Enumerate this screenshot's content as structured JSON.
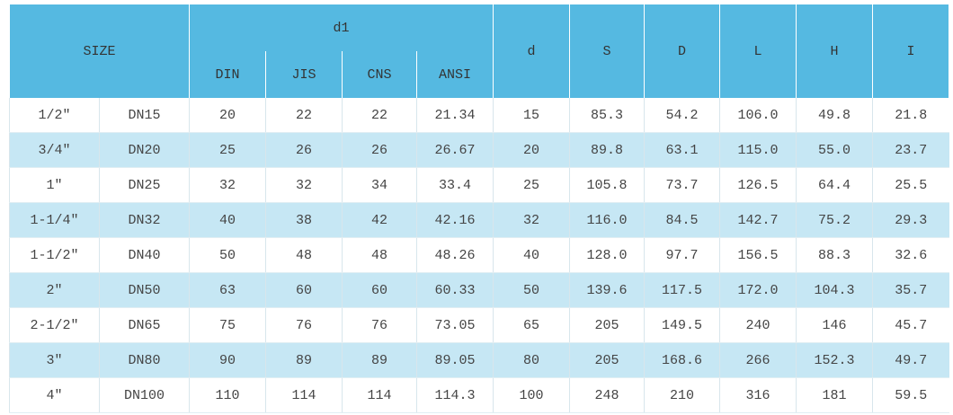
{
  "header": {
    "size": "SIZE",
    "d1": "d1",
    "d1_sub": [
      "DIN",
      "JIS",
      "CNS",
      "ANSI"
    ],
    "columns": [
      "d",
      "S",
      "D",
      "L",
      "H",
      "I"
    ]
  },
  "table": {
    "rows": [
      [
        "1/2″",
        "DN15",
        "20",
        "22",
        "22",
        "21.34",
        "15",
        "85.3",
        "54.2",
        "106.0",
        "49.8",
        "21.8"
      ],
      [
        "3/4″",
        "DN20",
        "25",
        "26",
        "26",
        "26.67",
        "20",
        "89.8",
        "63.1",
        "115.0",
        "55.0",
        "23.7"
      ],
      [
        "1″",
        "DN25",
        "32",
        "32",
        "34",
        "33.4",
        "25",
        "105.8",
        "73.7",
        "126.5",
        "64.4",
        "25.5"
      ],
      [
        "1-1/4″",
        "DN32",
        "40",
        "38",
        "42",
        "42.16",
        "32",
        "116.0",
        "84.5",
        "142.7",
        "75.2",
        "29.3"
      ],
      [
        "1-1/2″",
        "DN40",
        "50",
        "48",
        "48",
        "48.26",
        "40",
        "128.0",
        "97.7",
        "156.5",
        "88.3",
        "32.6"
      ],
      [
        "2″",
        "DN50",
        "63",
        "60",
        "60",
        "60.33",
        "50",
        "139.6",
        "117.5",
        "172.0",
        "104.3",
        "35.7"
      ],
      [
        "2-1/2″",
        "DN65",
        "75",
        "76",
        "76",
        "73.05",
        "65",
        "205",
        "149.5",
        "240",
        "146",
        "45.7"
      ],
      [
        "3″",
        "DN80",
        "90",
        "89",
        "89",
        "89.05",
        "80",
        "205",
        "168.6",
        "266",
        "152.3",
        "49.7"
      ],
      [
        "4″",
        "DN100",
        "110",
        "114",
        "114",
        "114.3",
        "100",
        "248",
        "210",
        "316",
        "181",
        "59.5"
      ]
    ]
  }
}
